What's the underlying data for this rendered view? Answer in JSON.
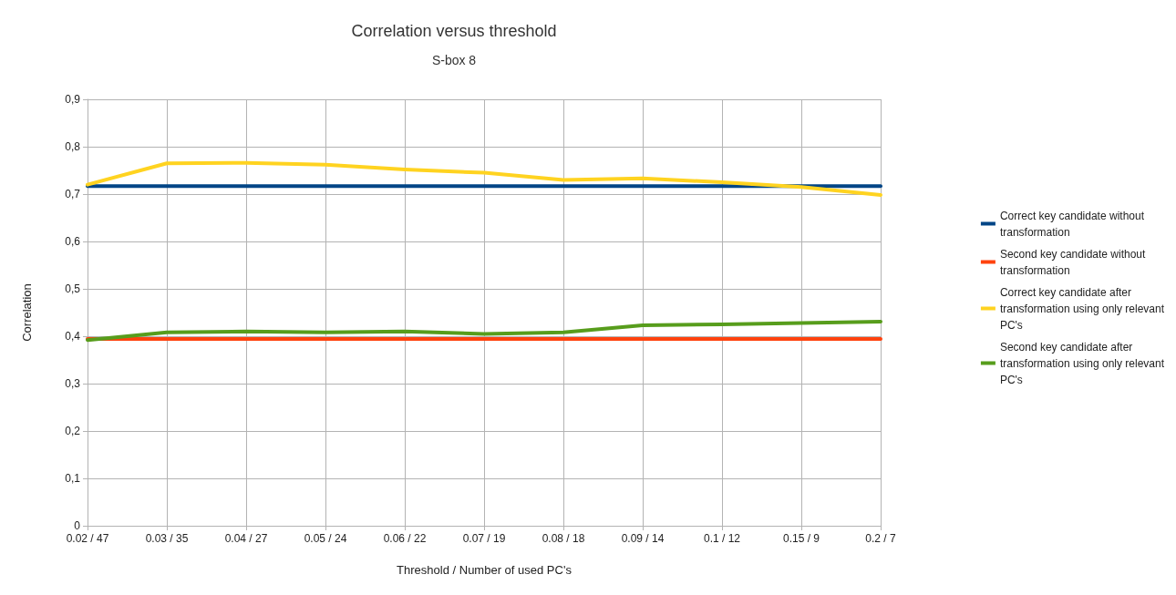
{
  "chart_data": {
    "type": "line",
    "title": "Correlation versus threshold",
    "subtitle": "S-box 8",
    "xlabel": "Threshold / Number of used PC's",
    "ylabel": "Correlation",
    "categories": [
      "0.02 / 47",
      "0.03 / 35",
      "0.04 / 27",
      "0.05 / 24",
      "0.06 / 22",
      "0.07 / 19",
      "0.08 / 18",
      "0.09 / 14",
      "0.1 / 12",
      "0.15 / 9",
      "0.2 / 7"
    ],
    "series": [
      {
        "name": "Correct key candidate without transformation",
        "color": "#004586",
        "values": [
          0.717,
          0.717,
          0.717,
          0.717,
          0.717,
          0.717,
          0.717,
          0.717,
          0.717,
          0.717,
          0.717
        ]
      },
      {
        "name": "Second key candidate without transformation",
        "color": "#ff420e",
        "values": [
          0.394,
          0.394,
          0.394,
          0.394,
          0.394,
          0.394,
          0.394,
          0.394,
          0.394,
          0.394,
          0.394
        ]
      },
      {
        "name": "Correct key candidate after transformation using only relevant PC's",
        "color": "#ffd320",
        "values": [
          0.72,
          0.765,
          0.766,
          0.762,
          0.752,
          0.745,
          0.73,
          0.733,
          0.725,
          0.715,
          0.698
        ]
      },
      {
        "name": "Second key candidate after transformation using only relevant PC's",
        "color": "#579d1c",
        "values": [
          0.392,
          0.408,
          0.41,
          0.408,
          0.41,
          0.405,
          0.408,
          0.423,
          0.425,
          0.428,
          0.431
        ]
      }
    ],
    "ylim": [
      0,
      0.9
    ],
    "yticks": [
      {
        "value": 0,
        "label": "0"
      },
      {
        "value": 0.1,
        "label": "0,1"
      },
      {
        "value": 0.2,
        "label": "0,2"
      },
      {
        "value": 0.3,
        "label": "0,3"
      },
      {
        "value": 0.4,
        "label": "0,4"
      },
      {
        "value": 0.5,
        "label": "0,5"
      },
      {
        "value": 0.6,
        "label": "0,6"
      },
      {
        "value": 0.7,
        "label": "0,7"
      },
      {
        "value": 0.8,
        "label": "0,8"
      },
      {
        "value": 0.9,
        "label": "0,9"
      }
    ],
    "grid": true,
    "legend": "right",
    "marker": "none",
    "line_style": "solid"
  }
}
